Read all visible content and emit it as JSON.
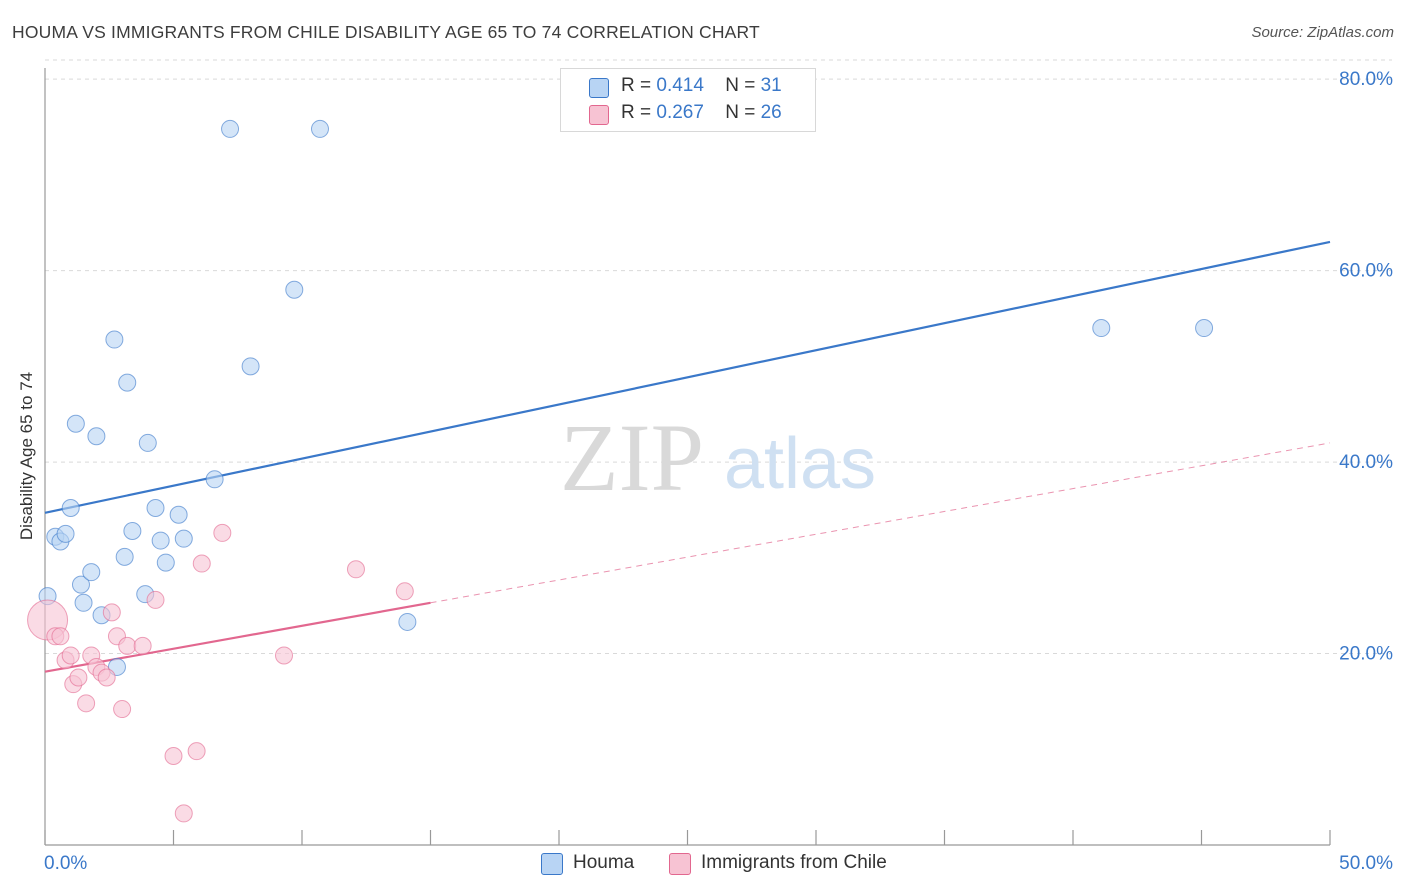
{
  "title": "HOUMA VS IMMIGRANTS FROM CHILE DISABILITY AGE 65 TO 74 CORRELATION CHART",
  "source": "Source: ZipAtlas.com",
  "watermark": {
    "zip": "ZIP",
    "atlas": "atlas"
  },
  "legend": {
    "houma": {
      "r_label": "R = ",
      "r": "0.414",
      "n_label": "N = ",
      "n": "31"
    },
    "chile": {
      "r_label": "R = ",
      "r": "0.267",
      "n_label": "N = ",
      "n": "26"
    }
  },
  "colors": {
    "blue": "#3a78c9",
    "blue_fill": "#b8d4f4",
    "pink": "#e2678f",
    "pink_fill": "#f7c3d3",
    "grid": "#d9d9d9"
  },
  "chart_data": {
    "type": "scatter",
    "title": "HOUMA VS IMMIGRANTS FROM CHILE DISABILITY AGE 65 TO 74 CORRELATION CHART",
    "xlabel": "",
    "ylabel": "Disability Age 65 to 74",
    "xlim": [
      0,
      50
    ],
    "ylim": [
      0,
      82
    ],
    "x_tick_labels": [
      "0.0%",
      "50.0%"
    ],
    "y_ticks": [
      20,
      40,
      60,
      80
    ],
    "y_tick_labels": [
      "20.0%",
      "40.0%",
      "60.0%",
      "80.0%"
    ],
    "series": [
      {
        "name": "Houma",
        "color": "#3a78c9",
        "points": [
          [
            0.1,
            26.0
          ],
          [
            0.4,
            32.2
          ],
          [
            0.6,
            31.7
          ],
          [
            0.8,
            32.5
          ],
          [
            1.0,
            35.2
          ],
          [
            1.2,
            44.0
          ],
          [
            1.4,
            27.2
          ],
          [
            1.5,
            25.3
          ],
          [
            1.8,
            28.5
          ],
          [
            2.0,
            42.7
          ],
          [
            2.2,
            24.0
          ],
          [
            2.7,
            52.8
          ],
          [
            2.8,
            18.6
          ],
          [
            3.1,
            30.1
          ],
          [
            3.2,
            48.3
          ],
          [
            3.4,
            32.8
          ],
          [
            3.9,
            26.2
          ],
          [
            4.0,
            42.0
          ],
          [
            4.3,
            35.2
          ],
          [
            4.5,
            31.8
          ],
          [
            4.7,
            29.5
          ],
          [
            5.2,
            34.5
          ],
          [
            5.4,
            32.0
          ],
          [
            6.6,
            38.2
          ],
          [
            7.2,
            74.8
          ],
          [
            8.0,
            50.0
          ],
          [
            9.7,
            58.0
          ],
          [
            10.7,
            74.8
          ],
          [
            14.1,
            23.3
          ],
          [
            41.1,
            54.0
          ],
          [
            45.1,
            54.0
          ]
        ],
        "trend": {
          "x": [
            0,
            50
          ],
          "y": [
            34.7,
            63.0
          ],
          "style": "solid"
        }
      },
      {
        "name": "Immigrants from Chile",
        "color": "#e2678f",
        "points": [
          [
            0.1,
            23.5
          ],
          [
            0.4,
            21.8
          ],
          [
            0.6,
            21.8
          ],
          [
            0.8,
            19.3
          ],
          [
            1.0,
            19.8
          ],
          [
            1.1,
            16.8
          ],
          [
            1.3,
            17.5
          ],
          [
            1.6,
            14.8
          ],
          [
            1.8,
            19.8
          ],
          [
            2.0,
            18.6
          ],
          [
            2.2,
            18.0
          ],
          [
            2.4,
            17.5
          ],
          [
            2.6,
            24.3
          ],
          [
            2.8,
            21.8
          ],
          [
            3.0,
            14.2
          ],
          [
            3.2,
            20.8
          ],
          [
            3.8,
            20.8
          ],
          [
            4.3,
            25.6
          ],
          [
            5.0,
            9.3
          ],
          [
            5.4,
            3.3
          ],
          [
            5.9,
            9.8
          ],
          [
            6.1,
            29.4
          ],
          [
            6.9,
            32.6
          ],
          [
            9.3,
            19.8
          ],
          [
            12.1,
            28.8
          ],
          [
            14.0,
            26.5
          ]
        ],
        "trend": {
          "x": [
            0,
            15
          ],
          "y": [
            18.1,
            25.3
          ],
          "style": "solid"
        },
        "trend_extension": {
          "x": [
            15,
            50
          ],
          "y": [
            25.3,
            42.0
          ],
          "style": "dashed"
        }
      }
    ]
  },
  "bottom_legend": [
    "Houma",
    "Immigrants from Chile"
  ]
}
